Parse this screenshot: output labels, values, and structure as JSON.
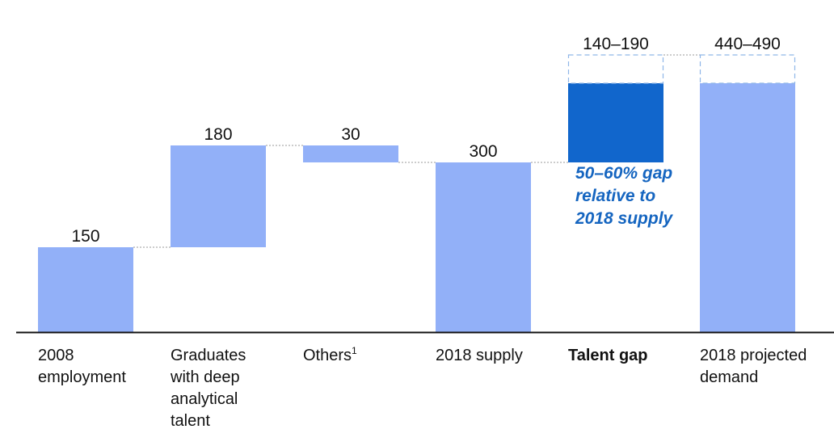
{
  "chart_data": {
    "type": "bar",
    "subtype": "waterfall",
    "categories": [
      "2008\nemployment",
      "Graduates\nwith deep\nanalytical\ntalent",
      "Others",
      "2018 supply",
      "Talent gap",
      "2018 projected\ndemand"
    ],
    "category_superscripts": [
      "",
      "",
      "1",
      "",
      "",
      ""
    ],
    "bold_categories": [
      false,
      false,
      false,
      false,
      true,
      false
    ],
    "value_labels": [
      "150",
      "180",
      "30",
      "300",
      "140–190",
      "440–490"
    ],
    "bars": [
      {
        "base": 0,
        "value": 150,
        "kind": "total"
      },
      {
        "base": 150,
        "value": 180,
        "kind": "increment"
      },
      {
        "base": 300,
        "value": 30,
        "kind": "increment"
      },
      {
        "base": 0,
        "value": 300,
        "kind": "total"
      },
      {
        "base": 300,
        "value": 140,
        "range_high": 190,
        "kind": "gap"
      },
      {
        "base": 0,
        "value": 440,
        "range_high": 490,
        "kind": "total"
      }
    ],
    "annotation": "50–60% gap\nrelative to\n2018 supply",
    "colors": {
      "bar": "#92b0f8",
      "gap": "#1166cc",
      "range_outline": "#8fb6e8",
      "connector": "#999999",
      "axis": "#111111",
      "annotation": "#1565c0"
    },
    "ylim": [
      0,
      490
    ],
    "grid": false,
    "legend": false
  }
}
